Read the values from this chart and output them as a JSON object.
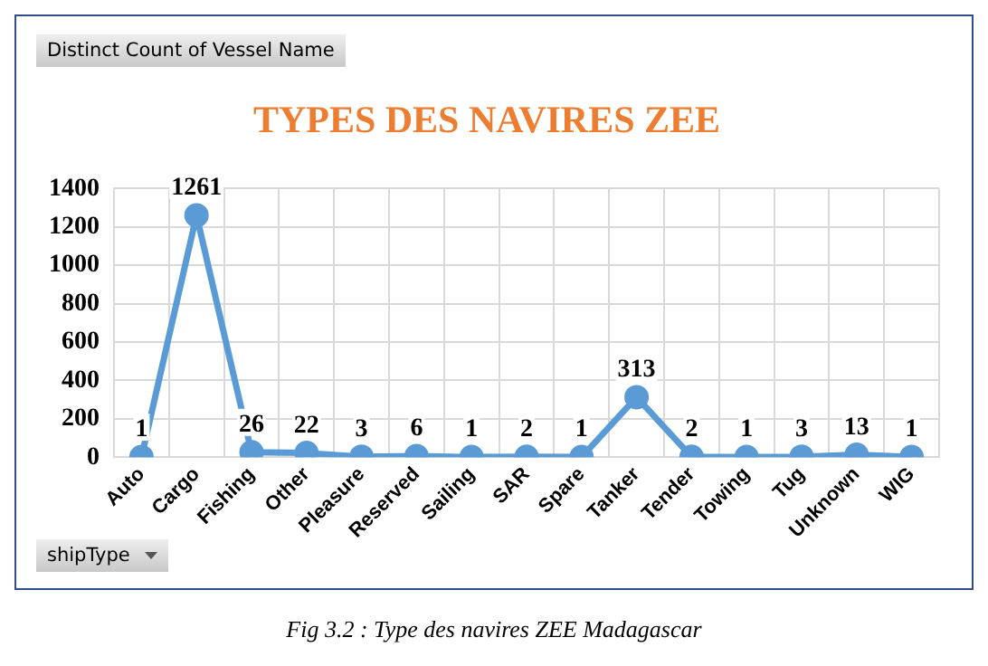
{
  "chart_data": {
    "type": "line",
    "title": "TYPES DES NAVIRES ZEE",
    "categories": [
      "Auto",
      "Cargo",
      "Fishing",
      "Other",
      "Pleasure",
      "Reserved",
      "Sailing",
      "SAR",
      "Spare",
      "Tanker",
      "Tender",
      "Towing",
      "Tug",
      "Unknown",
      "WIG"
    ],
    "series": [
      {
        "color": "#5b9bd5",
        "values": [
          1,
          1261,
          26,
          22,
          3,
          6,
          1,
          2,
          1,
          313,
          2,
          1,
          3,
          13,
          1
        ]
      }
    ],
    "ylim": [
      0,
      1400
    ],
    "yticks": [
      0,
      200,
      400,
      600,
      800,
      1000,
      1200,
      1400
    ],
    "grid": true,
    "legend": false,
    "marker": "circle",
    "line_style": "solid",
    "data_labels": true,
    "annotations": [
      "Distinct Count of Vessel Name",
      "shipType",
      "Fig 3.2 : Type des navires ZEE Madagascar"
    ]
  }
}
